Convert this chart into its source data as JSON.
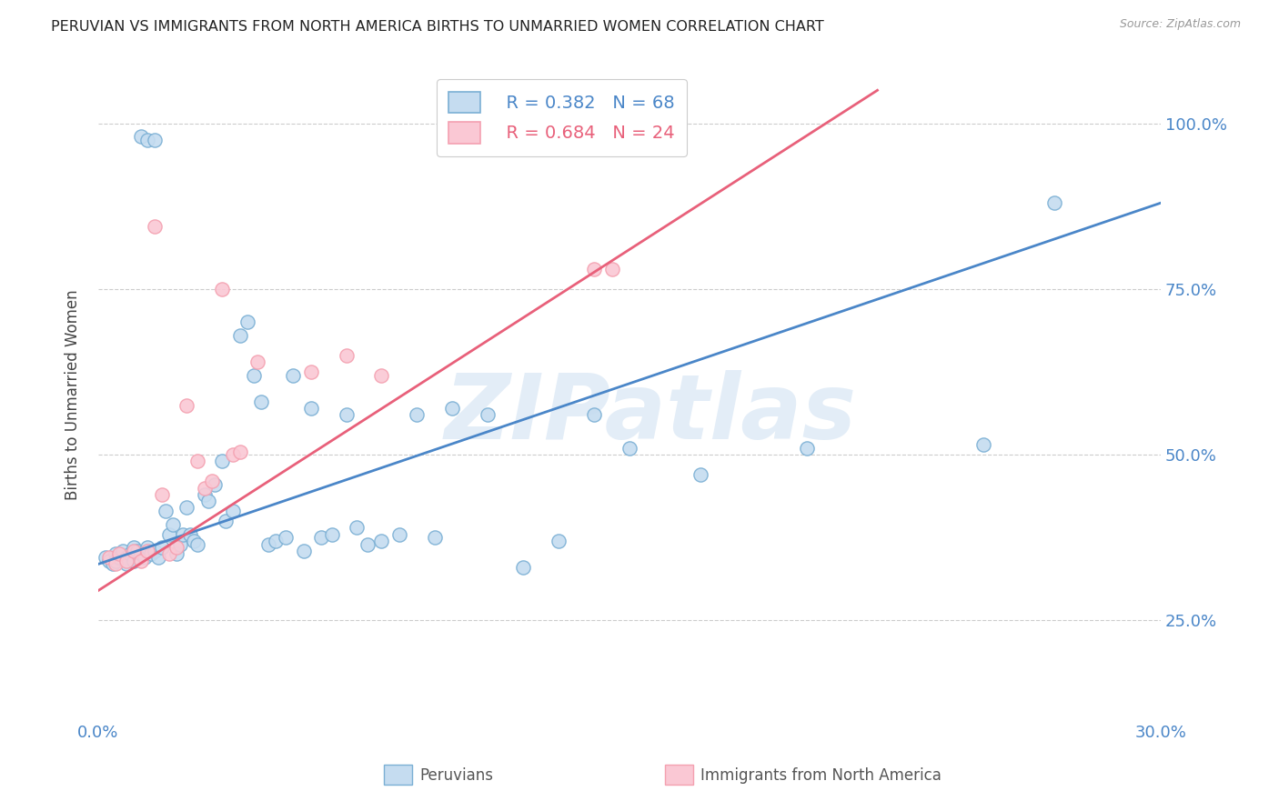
{
  "title": "PERUVIAN VS IMMIGRANTS FROM NORTH AMERICA BIRTHS TO UNMARRIED WOMEN CORRELATION CHART",
  "source": "Source: ZipAtlas.com",
  "ylabel": "Births to Unmarried Women",
  "xlim": [
    0.0,
    0.3
  ],
  "ylim": [
    0.1,
    1.08
  ],
  "ytick_vals": [
    0.25,
    0.5,
    0.75,
    1.0
  ],
  "ytick_labels": [
    "25.0%",
    "50.0%",
    "75.0%",
    "100.0%"
  ],
  "xtick_vals": [
    0.0,
    0.05,
    0.1,
    0.15,
    0.2,
    0.25,
    0.3
  ],
  "xtick_labels": [
    "0.0%",
    "",
    "",
    "",
    "",
    "",
    "30.0%"
  ],
  "legend_R_blue": "R = 0.382",
  "legend_N_blue": "N = 68",
  "legend_R_pink": "R = 0.684",
  "legend_N_pink": "N = 24",
  "blue_color": "#7AAFD4",
  "pink_color": "#F4A0B0",
  "blue_fill": "#C5DCF0",
  "pink_fill": "#FAC8D4",
  "blue_line_color": "#4A86C8",
  "pink_line_color": "#E8607A",
  "watermark_color": "#C8DCF0",
  "blue_trend_x": [
    0.0,
    0.3
  ],
  "blue_trend_y": [
    0.335,
    0.88
  ],
  "pink_trend_x": [
    0.0,
    0.22
  ],
  "pink_trend_y": [
    0.295,
    1.05
  ],
  "blue_scatter_x": [
    0.002,
    0.003,
    0.004,
    0.005,
    0.005,
    0.006,
    0.007,
    0.008,
    0.008,
    0.009,
    0.01,
    0.01,
    0.011,
    0.012,
    0.013,
    0.014,
    0.015,
    0.016,
    0.017,
    0.018,
    0.019,
    0.02,
    0.021,
    0.022,
    0.023,
    0.024,
    0.025,
    0.026,
    0.027,
    0.028,
    0.03,
    0.031,
    0.033,
    0.035,
    0.036,
    0.038,
    0.04,
    0.042,
    0.044,
    0.046,
    0.048,
    0.05,
    0.053,
    0.055,
    0.058,
    0.06,
    0.063,
    0.066,
    0.07,
    0.073,
    0.076,
    0.08,
    0.085,
    0.09,
    0.095,
    0.1,
    0.11,
    0.12,
    0.13,
    0.14,
    0.15,
    0.17,
    0.2,
    0.25,
    0.27,
    0.012,
    0.014,
    0.016
  ],
  "blue_scatter_y": [
    0.345,
    0.34,
    0.335,
    0.35,
    0.34,
    0.345,
    0.355,
    0.345,
    0.335,
    0.35,
    0.36,
    0.34,
    0.355,
    0.35,
    0.345,
    0.36,
    0.35,
    0.355,
    0.345,
    0.36,
    0.415,
    0.38,
    0.395,
    0.35,
    0.365,
    0.38,
    0.42,
    0.38,
    0.37,
    0.365,
    0.44,
    0.43,
    0.455,
    0.49,
    0.4,
    0.415,
    0.68,
    0.7,
    0.62,
    0.58,
    0.365,
    0.37,
    0.375,
    0.62,
    0.355,
    0.57,
    0.375,
    0.38,
    0.56,
    0.39,
    0.365,
    0.37,
    0.38,
    0.56,
    0.375,
    0.57,
    0.56,
    0.33,
    0.37,
    0.56,
    0.51,
    0.47,
    0.51,
    0.515,
    0.88,
    0.98,
    0.975,
    0.975
  ],
  "pink_scatter_x": [
    0.003,
    0.005,
    0.006,
    0.008,
    0.01,
    0.012,
    0.014,
    0.016,
    0.018,
    0.02,
    0.022,
    0.025,
    0.028,
    0.03,
    0.032,
    0.035,
    0.038,
    0.04,
    0.045,
    0.06,
    0.07,
    0.08,
    0.14,
    0.145
  ],
  "pink_scatter_y": [
    0.345,
    0.335,
    0.35,
    0.34,
    0.355,
    0.34,
    0.355,
    0.845,
    0.44,
    0.35,
    0.36,
    0.575,
    0.49,
    0.45,
    0.46,
    0.75,
    0.5,
    0.505,
    0.64,
    0.625,
    0.65,
    0.62,
    0.78,
    0.78
  ]
}
